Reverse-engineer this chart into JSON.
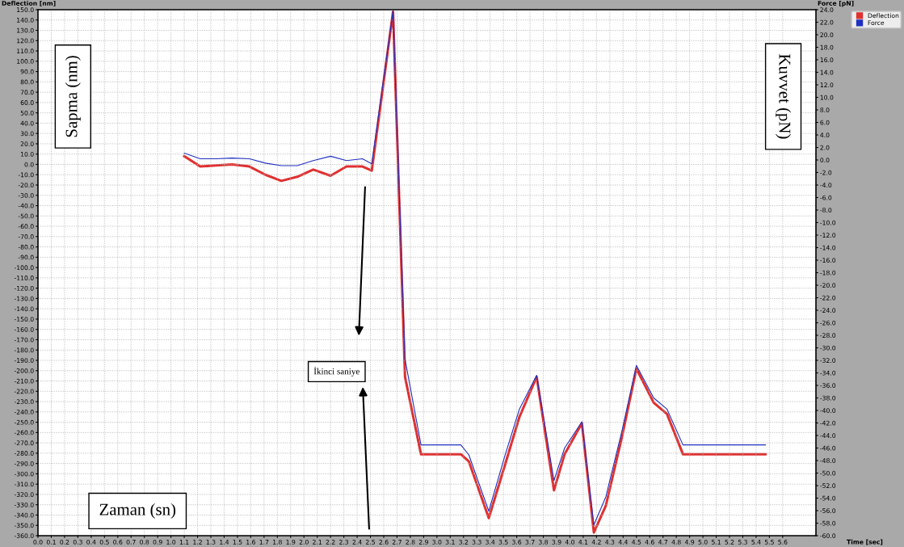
{
  "chart_data": {
    "type": "line",
    "xlabel": "Time [sec]",
    "ylabel": "Deflection [nm]",
    "y2label": "Force [pN]",
    "x": [
      1.1,
      1.22,
      1.34,
      1.46,
      1.59,
      1.71,
      1.83,
      1.95,
      2.07,
      2.2,
      2.32,
      2.44,
      2.51,
      2.67,
      2.76,
      2.88,
      3.02,
      3.18,
      3.24,
      3.39,
      3.51,
      3.62,
      3.75,
      3.88,
      3.96,
      4.09,
      4.18,
      4.27,
      4.39,
      4.5,
      4.63,
      4.73,
      4.85,
      5.0,
      5.47
    ],
    "series": [
      {
        "name": "Deflection",
        "color": "#e03030",
        "values": [
          8,
          -2,
          -1,
          0,
          -2,
          -10,
          -16,
          -12,
          -5,
          -11,
          -2,
          -2,
          -6,
          148,
          -206,
          -281,
          -281,
          -281,
          -288,
          -343,
          -292,
          -245,
          -206,
          -316,
          -281,
          -251,
          -357,
          -331,
          -265,
          -198,
          -231,
          -242,
          -281,
          -281,
          -281
        ]
      },
      {
        "name": "Force",
        "color": "#2030c0",
        "axis": "y2",
        "values": [
          1.1,
          0.2,
          0.2,
          0.3,
          0.2,
          -0.5,
          -0.9,
          -0.9,
          -0.1,
          0.6,
          -0.1,
          0.2,
          -0.6,
          23.8,
          -31.8,
          -45.5,
          -45.5,
          -45.5,
          -47.1,
          -56.1,
          -47.3,
          -39.8,
          -34.4,
          -51.2,
          -46.0,
          -41.8,
          -58.3,
          -53.8,
          -43.4,
          -32.8,
          -38.0,
          -39.8,
          -45.5,
          -45.5,
          -45.5
        ]
      }
    ],
    "xlim": [
      0,
      5.85
    ],
    "ylim": [
      -360,
      150
    ],
    "y2lim": [
      -60,
      24
    ],
    "xticks": [
      {
        "value": 0,
        "label": "0.0"
      },
      {
        "value": 0.1,
        "label": "0.1"
      },
      {
        "value": 0.2,
        "label": "0.2"
      },
      {
        "value": 0.3,
        "label": "0.3"
      },
      {
        "value": 0.4,
        "label": "0.4"
      },
      {
        "value": 0.5,
        "label": "0.5"
      },
      {
        "value": 0.6,
        "label": "0.6"
      },
      {
        "value": 0.7,
        "label": "0.7"
      },
      {
        "value": 0.8,
        "label": "0.8"
      },
      {
        "value": 0.9,
        "label": "0.9"
      },
      {
        "value": 1,
        "label": "1.0"
      },
      {
        "value": 1.1,
        "label": "1.1"
      },
      {
        "value": 1.2,
        "label": "1.2"
      },
      {
        "value": 1.3,
        "label": "1.3"
      },
      {
        "value": 1.4,
        "label": "1.4"
      },
      {
        "value": 1.5,
        "label": "1.5"
      },
      {
        "value": 1.6,
        "label": "1.6"
      },
      {
        "value": 1.7,
        "label": "1.7"
      },
      {
        "value": 1.8,
        "label": "1.8"
      },
      {
        "value": 1.9,
        "label": "1.9"
      },
      {
        "value": 2,
        "label": "2.0"
      },
      {
        "value": 2.1,
        "label": "2.1"
      },
      {
        "value": 2.2,
        "label": "2.2"
      },
      {
        "value": 2.3,
        "label": "2.3"
      },
      {
        "value": 2.4,
        "label": "2.4"
      },
      {
        "value": 2.5,
        "label": "2.5"
      },
      {
        "value": 2.6,
        "label": "2.6"
      },
      {
        "value": 2.7,
        "label": "2.7"
      },
      {
        "value": 2.8,
        "label": "2.8"
      },
      {
        "value": 2.9,
        "label": "2.9"
      },
      {
        "value": 3,
        "label": "3.0"
      },
      {
        "value": 3.1,
        "label": "3.1"
      },
      {
        "value": 3.2,
        "label": "3.2"
      },
      {
        "value": 3.3,
        "label": "3.3"
      },
      {
        "value": 3.4,
        "label": "3.4"
      },
      {
        "value": 3.5,
        "label": "3.5"
      },
      {
        "value": 3.6,
        "label": "3.6"
      },
      {
        "value": 3.7,
        "label": "3.7"
      },
      {
        "value": 3.8,
        "label": "3.8"
      },
      {
        "value": 3.9,
        "label": "3.9"
      },
      {
        "value": 4,
        "label": "4.0"
      },
      {
        "value": 4.1,
        "label": "4.1"
      },
      {
        "value": 4.2,
        "label": "4.2"
      },
      {
        "value": 4.3,
        "label": "4.3"
      },
      {
        "value": 4.4,
        "label": "4.4"
      },
      {
        "value": 4.5,
        "label": "4.5"
      },
      {
        "value": 4.6,
        "label": "4.6"
      },
      {
        "value": 4.7,
        "label": "4.7"
      },
      {
        "value": 4.8,
        "label": "4.8"
      },
      {
        "value": 4.9,
        "label": "4.9"
      },
      {
        "value": 5,
        "label": "5.0"
      },
      {
        "value": 5.1,
        "label": "5.1"
      },
      {
        "value": 5.2,
        "label": "5.2"
      },
      {
        "value": 5.3,
        "label": "5.3"
      },
      {
        "value": 5.4,
        "label": "5.4"
      },
      {
        "value": 5.5,
        "label": "5.5"
      },
      {
        "value": 5.6,
        "label": "5.6"
      }
    ],
    "yticks": [
      {
        "value": 150,
        "label": "150.0"
      },
      {
        "value": 140,
        "label": "140.0"
      },
      {
        "value": 130,
        "label": "130.0"
      },
      {
        "value": 120,
        "label": "120.0"
      },
      {
        "value": 110,
        "label": "110.0"
      },
      {
        "value": 100,
        "label": "100.0"
      },
      {
        "value": 90,
        "label": "90.0"
      },
      {
        "value": 80,
        "label": "80.0"
      },
      {
        "value": 70,
        "label": "70.0"
      },
      {
        "value": 60,
        "label": "60.0"
      },
      {
        "value": 50,
        "label": "50.0"
      },
      {
        "value": 40,
        "label": "40.0"
      },
      {
        "value": 30,
        "label": "30.0"
      },
      {
        "value": 20,
        "label": "20.0"
      },
      {
        "value": 10,
        "label": "10.0"
      },
      {
        "value": 0,
        "label": "0.0"
      },
      {
        "value": -10,
        "label": "-10.0"
      },
      {
        "value": -20,
        "label": "-20.0"
      },
      {
        "value": -30,
        "label": "-30.0"
      },
      {
        "value": -40,
        "label": "-40.0"
      },
      {
        "value": -50,
        "label": "-50.0"
      },
      {
        "value": -60,
        "label": "-60.0"
      },
      {
        "value": -70,
        "label": "-70.0"
      },
      {
        "value": -80,
        "label": "-80.0"
      },
      {
        "value": -90,
        "label": "-90.0"
      },
      {
        "value": -100,
        "label": "-100.0"
      },
      {
        "value": -110,
        "label": "-110.0"
      },
      {
        "value": -120,
        "label": "-120.0"
      },
      {
        "value": -130,
        "label": "-130.0"
      },
      {
        "value": -140,
        "label": "-140.0"
      },
      {
        "value": -150,
        "label": "-150.0"
      },
      {
        "value": -160,
        "label": "-160.0"
      },
      {
        "value": -170,
        "label": "-170.0"
      },
      {
        "value": -180,
        "label": "-180.0"
      },
      {
        "value": -190,
        "label": "-190.0"
      },
      {
        "value": -200,
        "label": "-200.0"
      },
      {
        "value": -210,
        "label": "-210.0"
      },
      {
        "value": -220,
        "label": "-220.0"
      },
      {
        "value": -230,
        "label": "-230.0"
      },
      {
        "value": -240,
        "label": "-240.0"
      },
      {
        "value": -250,
        "label": "-250.0"
      },
      {
        "value": -260,
        "label": "-260.0"
      },
      {
        "value": -270,
        "label": "-270.0"
      },
      {
        "value": -280,
        "label": "-280.0"
      },
      {
        "value": -290,
        "label": "-290.0"
      },
      {
        "value": -300,
        "label": "-300.0"
      },
      {
        "value": -310,
        "label": "-310.0"
      },
      {
        "value": -320,
        "label": "-320.0"
      },
      {
        "value": -330,
        "label": "-330.0"
      },
      {
        "value": -340,
        "label": "-340.0"
      },
      {
        "value": -350,
        "label": "-350.0"
      },
      {
        "value": -360,
        "label": "-360.0"
      }
    ],
    "y2ticks": [
      {
        "value": 24,
        "label": "24.0"
      },
      {
        "value": 22,
        "label": "22.0"
      },
      {
        "value": 20,
        "label": "20.0"
      },
      {
        "value": 18,
        "label": "18.0"
      },
      {
        "value": 16,
        "label": "16.0"
      },
      {
        "value": 14,
        "label": "14.0"
      },
      {
        "value": 12,
        "label": "12.0"
      },
      {
        "value": 10,
        "label": "10.0"
      },
      {
        "value": 8,
        "label": "8.0"
      },
      {
        "value": 6,
        "label": "6.0"
      },
      {
        "value": 4,
        "label": "4.0"
      },
      {
        "value": 2,
        "label": "2.0"
      },
      {
        "value": 0,
        "label": "0.0"
      },
      {
        "value": -2,
        "label": "-2.0"
      },
      {
        "value": -4,
        "label": "-4.0"
      },
      {
        "value": -6,
        "label": "-6.0"
      },
      {
        "value": -8,
        "label": "-8.0"
      },
      {
        "value": -10,
        "label": "-10.0"
      },
      {
        "value": -12,
        "label": "-12.0"
      },
      {
        "value": -14,
        "label": "-14.0"
      },
      {
        "value": -16,
        "label": "-16.0"
      },
      {
        "value": -18,
        "label": "-18.0"
      },
      {
        "value": -20,
        "label": "-20.0"
      },
      {
        "value": -22,
        "label": "-22.0"
      },
      {
        "value": -24,
        "label": "-24.0"
      },
      {
        "value": -26,
        "label": "-26.0"
      },
      {
        "value": -28,
        "label": "-28.0"
      },
      {
        "value": -30,
        "label": "-30.0"
      },
      {
        "value": -32,
        "label": "-32.0"
      },
      {
        "value": -34,
        "label": "-34.0"
      },
      {
        "value": -36,
        "label": "-36.0"
      },
      {
        "value": -38,
        "label": "-38.0"
      },
      {
        "value": -40,
        "label": "-40.0"
      },
      {
        "value": -42,
        "label": "-42.0"
      },
      {
        "value": -44,
        "label": "-44.0"
      },
      {
        "value": -46,
        "label": "-46.0"
      },
      {
        "value": -48,
        "label": "-48.0"
      },
      {
        "value": -50,
        "label": "-50.0"
      },
      {
        "value": -52,
        "label": "-52.0"
      },
      {
        "value": -54,
        "label": "-54.0"
      },
      {
        "value": -56,
        "label": "-56.0"
      },
      {
        "value": -58,
        "label": "-58.0"
      },
      {
        "value": -60,
        "label": "-60.0"
      }
    ],
    "grid": true,
    "legend": "top right",
    "line_style": "solid",
    "annotations": [
      "Sapma (nm)",
      "Kuvvet (pN)",
      "Zaman (sn)",
      "İkinci saniye"
    ]
  }
}
